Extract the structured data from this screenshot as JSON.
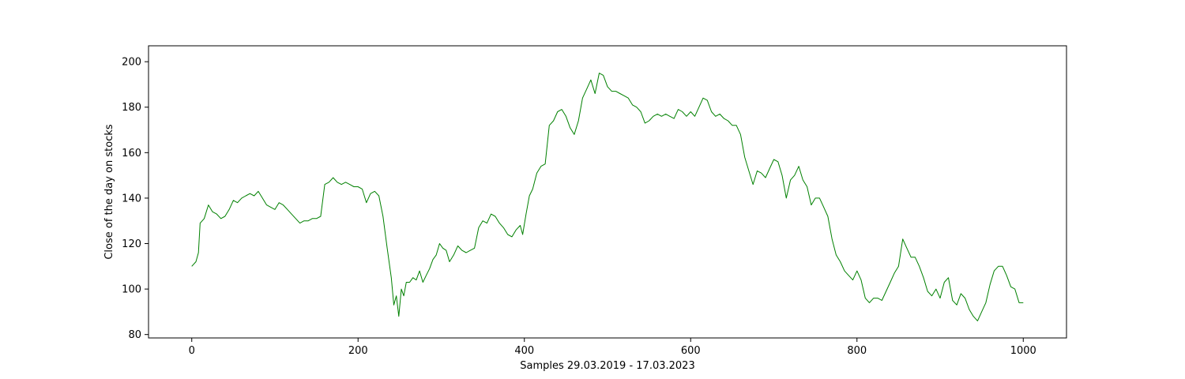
{
  "chart_data": {
    "type": "line",
    "title": "",
    "xlabel": "Samples 29.03.2019 - 17.03.2023",
    "ylabel": "Close of the day on stocks",
    "xlim": [
      -52,
      1052
    ],
    "ylim": [
      78.5,
      207
    ],
    "x_ticks": [
      0,
      200,
      400,
      600,
      800,
      1000
    ],
    "x_tick_labels": [
      "0",
      "200",
      "400",
      "600",
      "800",
      "1000"
    ],
    "y_ticks": [
      80,
      100,
      120,
      140,
      160,
      180,
      200
    ],
    "y_tick_labels": [
      "80",
      "100",
      "120",
      "140",
      "160",
      "180",
      "200"
    ],
    "grid": false,
    "legend": false,
    "series": [
      {
        "color": "#008000",
        "points": [
          [
            0,
            110
          ],
          [
            5,
            112
          ],
          [
            8,
            116
          ],
          [
            10,
            129
          ],
          [
            15,
            131
          ],
          [
            20,
            137
          ],
          [
            25,
            134
          ],
          [
            30,
            133
          ],
          [
            35,
            131
          ],
          [
            40,
            132
          ],
          [
            45,
            135
          ],
          [
            50,
            139
          ],
          [
            55,
            138
          ],
          [
            60,
            140
          ],
          [
            65,
            141
          ],
          [
            70,
            142
          ],
          [
            75,
            141
          ],
          [
            80,
            143
          ],
          [
            85,
            140
          ],
          [
            90,
            137
          ],
          [
            95,
            136
          ],
          [
            100,
            135
          ],
          [
            105,
            138
          ],
          [
            110,
            137
          ],
          [
            115,
            135
          ],
          [
            120,
            133
          ],
          [
            125,
            131
          ],
          [
            130,
            129
          ],
          [
            135,
            130
          ],
          [
            140,
            130
          ],
          [
            145,
            131
          ],
          [
            150,
            131
          ],
          [
            155,
            132
          ],
          [
            160,
            146
          ],
          [
            165,
            147
          ],
          [
            170,
            149
          ],
          [
            175,
            147
          ],
          [
            180,
            146
          ],
          [
            185,
            147
          ],
          [
            190,
            146
          ],
          [
            195,
            145
          ],
          [
            200,
            145
          ],
          [
            205,
            144
          ],
          [
            210,
            138
          ],
          [
            215,
            142
          ],
          [
            220,
            143
          ],
          [
            225,
            141
          ],
          [
            230,
            132
          ],
          [
            235,
            118
          ],
          [
            240,
            105
          ],
          [
            243,
            93
          ],
          [
            246,
            97
          ],
          [
            249,
            88
          ],
          [
            252,
            100
          ],
          [
            255,
            97
          ],
          [
            258,
            103
          ],
          [
            262,
            103
          ],
          [
            266,
            105
          ],
          [
            270,
            104
          ],
          [
            274,
            108
          ],
          [
            278,
            103
          ],
          [
            282,
            106
          ],
          [
            286,
            109
          ],
          [
            290,
            113
          ],
          [
            294,
            115
          ],
          [
            298,
            120
          ],
          [
            302,
            118
          ],
          [
            306,
            117
          ],
          [
            310,
            112
          ],
          [
            315,
            115
          ],
          [
            320,
            119
          ],
          [
            325,
            117
          ],
          [
            330,
            116
          ],
          [
            335,
            117
          ],
          [
            340,
            118
          ],
          [
            345,
            127
          ],
          [
            350,
            130
          ],
          [
            355,
            129
          ],
          [
            360,
            133
          ],
          [
            365,
            132
          ],
          [
            370,
            129
          ],
          [
            375,
            127
          ],
          [
            380,
            124
          ],
          [
            385,
            123
          ],
          [
            390,
            126
          ],
          [
            395,
            128
          ],
          [
            398,
            124
          ],
          [
            402,
            133
          ],
          [
            406,
            141
          ],
          [
            410,
            144
          ],
          [
            415,
            151
          ],
          [
            420,
            154
          ],
          [
            425,
            155
          ],
          [
            430,
            172
          ],
          [
            435,
            174
          ],
          [
            440,
            178
          ],
          [
            445,
            179
          ],
          [
            450,
            176
          ],
          [
            455,
            171
          ],
          [
            460,
            168
          ],
          [
            465,
            174
          ],
          [
            470,
            184
          ],
          [
            475,
            188
          ],
          [
            480,
            192
          ],
          [
            485,
            186
          ],
          [
            490,
            195
          ],
          [
            495,
            194
          ],
          [
            500,
            189
          ],
          [
            505,
            187
          ],
          [
            510,
            187
          ],
          [
            515,
            186
          ],
          [
            520,
            185
          ],
          [
            525,
            184
          ],
          [
            530,
            181
          ],
          [
            535,
            180
          ],
          [
            540,
            178
          ],
          [
            545,
            173
          ],
          [
            550,
            174
          ],
          [
            555,
            176
          ],
          [
            560,
            177
          ],
          [
            565,
            176
          ],
          [
            570,
            177
          ],
          [
            575,
            176
          ],
          [
            580,
            175
          ],
          [
            585,
            179
          ],
          [
            590,
            178
          ],
          [
            595,
            176
          ],
          [
            600,
            178
          ],
          [
            605,
            176
          ],
          [
            610,
            180
          ],
          [
            615,
            184
          ],
          [
            620,
            183
          ],
          [
            625,
            178
          ],
          [
            630,
            176
          ],
          [
            635,
            177
          ],
          [
            640,
            175
          ],
          [
            645,
            174
          ],
          [
            650,
            172
          ],
          [
            655,
            172
          ],
          [
            660,
            168
          ],
          [
            665,
            158
          ],
          [
            670,
            152
          ],
          [
            675,
            146
          ],
          [
            680,
            152
          ],
          [
            685,
            151
          ],
          [
            690,
            149
          ],
          [
            695,
            153
          ],
          [
            700,
            157
          ],
          [
            705,
            156
          ],
          [
            710,
            150
          ],
          [
            715,
            140
          ],
          [
            720,
            148
          ],
          [
            725,
            150
          ],
          [
            730,
            154
          ],
          [
            735,
            148
          ],
          [
            740,
            145
          ],
          [
            745,
            137
          ],
          [
            750,
            140
          ],
          [
            755,
            140
          ],
          [
            760,
            136
          ],
          [
            765,
            132
          ],
          [
            770,
            122
          ],
          [
            775,
            115
          ],
          [
            780,
            112
          ],
          [
            785,
            108
          ],
          [
            790,
            106
          ],
          [
            795,
            104
          ],
          [
            800,
            108
          ],
          [
            805,
            104
          ],
          [
            810,
            96
          ],
          [
            815,
            94
          ],
          [
            820,
            96
          ],
          [
            825,
            96
          ],
          [
            830,
            95
          ],
          [
            835,
            99
          ],
          [
            840,
            103
          ],
          [
            845,
            107
          ],
          [
            850,
            110
          ],
          [
            855,
            122
          ],
          [
            860,
            118
          ],
          [
            865,
            114
          ],
          [
            870,
            114
          ],
          [
            875,
            110
          ],
          [
            880,
            105
          ],
          [
            885,
            99
          ],
          [
            890,
            97
          ],
          [
            895,
            100
          ],
          [
            900,
            96
          ],
          [
            905,
            103
          ],
          [
            910,
            105
          ],
          [
            915,
            95
          ],
          [
            920,
            93
          ],
          [
            925,
            98
          ],
          [
            930,
            96
          ],
          [
            935,
            91
          ],
          [
            940,
            88
          ],
          [
            945,
            86
          ],
          [
            950,
            90
          ],
          [
            955,
            94
          ],
          [
            960,
            102
          ],
          [
            965,
            108
          ],
          [
            970,
            110
          ],
          [
            975,
            110
          ],
          [
            980,
            106
          ],
          [
            985,
            101
          ],
          [
            990,
            100
          ],
          [
            995,
            94
          ],
          [
            1000,
            94
          ]
        ]
      }
    ]
  }
}
